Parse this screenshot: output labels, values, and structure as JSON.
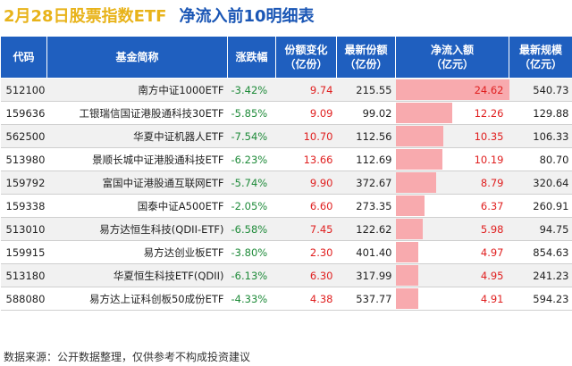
{
  "title": {
    "main": "2月28日股票指数ETF",
    "sub": "净流入前10明细表"
  },
  "headers": [
    "代码",
    "基金简称",
    "涨跌幅",
    "份额变化\n（亿份）",
    "最新份额\n（亿份）",
    "净流入额\n（亿元）",
    "最新规模\n（亿元）"
  ],
  "rows": [
    {
      "code": "512100",
      "name": "南方中证1000ETF",
      "change": "-3.42%",
      "share_change": "9.74",
      "latest_share": "215.55",
      "net_inflow": "24.62",
      "scale": "540.73"
    },
    {
      "code": "159636",
      "name": "工银瑞信国证港股通科技30ETF",
      "change": "-5.85%",
      "share_change": "9.09",
      "latest_share": "99.02",
      "net_inflow": "12.26",
      "scale": "129.88"
    },
    {
      "code": "562500",
      "name": "华夏中证机器人ETF",
      "change": "-7.54%",
      "share_change": "10.70",
      "latest_share": "112.56",
      "net_inflow": "10.35",
      "scale": "106.33"
    },
    {
      "code": "513980",
      "name": "景顺长城中证港股通科技ETF",
      "change": "-6.23%",
      "share_change": "13.66",
      "latest_share": "112.69",
      "net_inflow": "10.19",
      "scale": "80.70"
    },
    {
      "code": "159792",
      "name": "富国中证港股通互联网ETF",
      "change": "-5.74%",
      "share_change": "9.90",
      "latest_share": "372.67",
      "net_inflow": "8.79",
      "scale": "320.64"
    },
    {
      "code": "159338",
      "name": "国泰中证A500ETF",
      "change": "-2.05%",
      "share_change": "6.60",
      "latest_share": "273.35",
      "net_inflow": "6.37",
      "scale": "260.91"
    },
    {
      "code": "513010",
      "name": "易方达恒生科技(QDII-ETF)",
      "change": "-6.58%",
      "share_change": "7.45",
      "latest_share": "122.62",
      "net_inflow": "5.98",
      "scale": "94.75"
    },
    {
      "code": "159915",
      "name": "易方达创业板ETF",
      "change": "-3.80%",
      "share_change": "2.30",
      "latest_share": "401.40",
      "net_inflow": "4.97",
      "scale": "854.63"
    },
    {
      "code": "513180",
      "name": "华夏恒生科技ETF(QDII)",
      "change": "-6.13%",
      "share_change": "6.30",
      "latest_share": "317.99",
      "net_inflow": "4.95",
      "scale": "241.23"
    },
    {
      "code": "588080",
      "name": "易方达上证科创板50成份ETF",
      "change": "-4.33%",
      "share_change": "4.38",
      "latest_share": "537.77",
      "net_inflow": "4.91",
      "scale": "594.23"
    }
  ],
  "colors": {
    "header_bg": "#1f5fbf",
    "title_accent": "#e8b31a",
    "title_main": "#1a56b5",
    "positive_red": "#e02020",
    "negative_green": "#1f8b3a",
    "inflow_bar": "#f8aaae"
  },
  "footer": "数据来源：公开数据整理，仅供参考不构成投资建议"
}
